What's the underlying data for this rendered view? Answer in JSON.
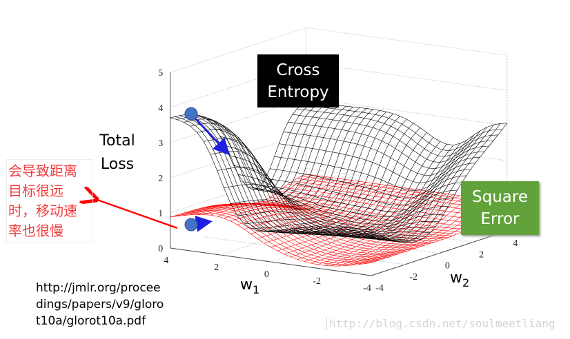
{
  "chart_data": {
    "type": "surface",
    "title": "",
    "zlabel": "Total Loss",
    "xlabel": "w1",
    "ylabel": "w2",
    "xlim": [
      -4,
      4
    ],
    "ylim": [
      -4,
      4
    ],
    "zlim": [
      0,
      5
    ],
    "x_ticks": [
      "4",
      "2",
      "0",
      "-2",
      "-4"
    ],
    "y_ticks": [
      "-4",
      "-2",
      "0",
      "2",
      "4"
    ],
    "z_ticks": [
      "0",
      "1",
      "2",
      "3",
      "4",
      "5"
    ],
    "grid": true,
    "series": [
      {
        "name": "Cross Entropy",
        "color": "#000000"
      },
      {
        "name": "Square Error",
        "color": "#ff0000"
      }
    ]
  },
  "labels": {
    "cross_entropy": [
      "Cross",
      "Entropy"
    ],
    "square_error": [
      "Square",
      "Error"
    ],
    "total_loss": [
      "Total",
      "Loss"
    ],
    "w1_main": "w",
    "w1_sub": "1",
    "w2_main": "w",
    "w2_sub": "2"
  },
  "annotation_cn": [
    "会导致距离",
    "目标很远",
    "时，移动速",
    "率也很慢"
  ],
  "source_url": [
    "http://jmlr.org/procee",
    "dings/papers/v9/gloro",
    "t10a/glorot10a.pdf"
  ],
  "watermark": "http://blog.csdn.net/soulmeetliang",
  "colors": {
    "point": "#4472c4",
    "gradient_arrow": "#1f1fe0",
    "annotation": "#f23c3c",
    "square_error_box": "#61a33a"
  }
}
